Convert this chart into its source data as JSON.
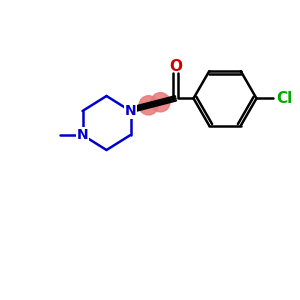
{
  "background_color": "#ffffff",
  "bond_color": "#000000",
  "nitrogen_color": "#0000cc",
  "oxygen_color": "#cc0000",
  "chlorine_color": "#00aa00",
  "alkyne_highlight_color": "#e87878",
  "figsize": [
    3.0,
    3.0
  ],
  "dpi": 100,
  "xlim": [
    0,
    10
  ],
  "ylim": [
    0,
    10
  ]
}
